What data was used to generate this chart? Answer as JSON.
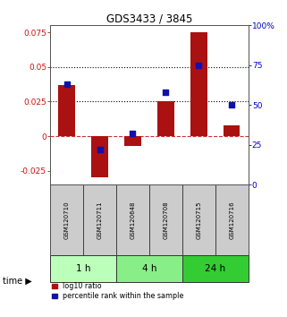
{
  "title": "GDS3433 / 3845",
  "samples": [
    "GSM120710",
    "GSM120711",
    "GSM120648",
    "GSM120708",
    "GSM120715",
    "GSM120716"
  ],
  "log10_ratio": [
    0.037,
    -0.03,
    -0.007,
    0.025,
    0.075,
    0.008
  ],
  "percentile_rank_pct": [
    63,
    22,
    32,
    58,
    75,
    50
  ],
  "bar_color": "#aa1111",
  "dot_color": "#1111aa",
  "ylim_left": [
    -0.035,
    0.08
  ],
  "ylim_right": [
    0,
    100
  ],
  "yticks_left": [
    -0.025,
    0,
    0.025,
    0.05,
    0.075
  ],
  "yticks_right": [
    0,
    25,
    50,
    75,
    100
  ],
  "hlines": [
    0.025,
    0.05
  ],
  "time_groups": [
    {
      "label": "1 h",
      "samples": [
        0,
        1
      ],
      "color": "#bbffbb"
    },
    {
      "label": "4 h",
      "samples": [
        2,
        3
      ],
      "color": "#88ee88"
    },
    {
      "label": "24 h",
      "samples": [
        4,
        5
      ],
      "color": "#33cc33"
    }
  ],
  "background_color": "#ffffff",
  "zero_line_color": "#cc3333",
  "legend_red_label": "log10 ratio",
  "legend_blue_label": "percentile rank within the sample",
  "bar_width": 0.5
}
